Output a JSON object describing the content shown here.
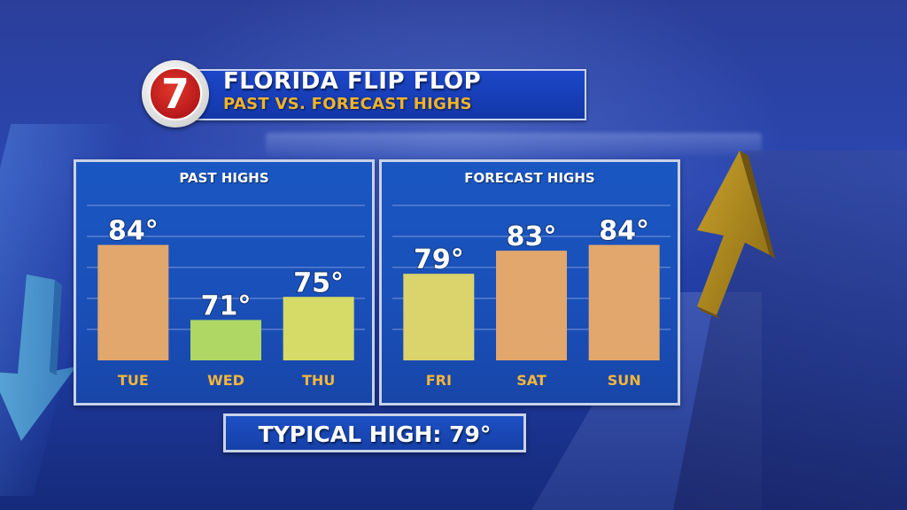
{
  "header": {
    "title": "FLORIDA FLIP FLOP",
    "subtitle": "PAST VS. FORECAST HIGHS",
    "logo_text": "7"
  },
  "footer": {
    "typical_high": "TYPICAL HIGH: 79°"
  },
  "colors": {
    "bar_orange": "#e0a060",
    "bar_green": "#a8d457",
    "bar_yellow": "#d2d85a",
    "category_label": "#f5b63a",
    "panel_blue": "#1a4fb8",
    "title_sub": "#f2b329"
  },
  "chart_data": [
    {
      "type": "bar",
      "title": "PAST HIGHS",
      "categories": [
        "TUE",
        "WED",
        "THU"
      ],
      "values": [
        84,
        71,
        75
      ],
      "labels": [
        "84°",
        "71°",
        "75°"
      ],
      "bar_colors": [
        "#e0a060",
        "#a8d457",
        "#d2d85a"
      ],
      "ylim": [
        64,
        91
      ],
      "grid": true
    },
    {
      "type": "bar",
      "title": "FORECAST HIGHS",
      "categories": [
        "FRI",
        "SAT",
        "SUN"
      ],
      "values": [
        79,
        83,
        84
      ],
      "labels": [
        "79°",
        "83°",
        "84°"
      ],
      "bar_colors": [
        "#d8d060",
        "#e0a060",
        "#e0a060"
      ],
      "ylim": [
        64,
        91
      ],
      "grid": true
    }
  ]
}
